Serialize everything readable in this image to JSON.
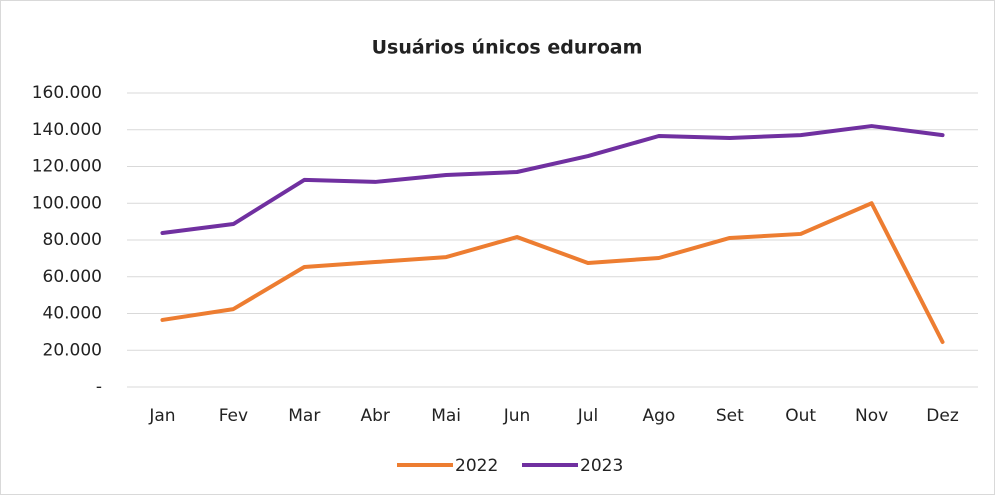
{
  "chart_data": {
    "type": "line",
    "title": "Usuários únicos eduroam",
    "categories": [
      "Jan",
      "Fev",
      "Mar",
      "Abr",
      "Mai",
      "Jun",
      "Jul",
      "Ago",
      "Set",
      "Out",
      "Nov",
      "Dez"
    ],
    "series": [
      {
        "name": "2022",
        "color": "#ed7d31",
        "values": [
          36500,
          42400,
          65300,
          68000,
          70700,
          81600,
          67500,
          70200,
          81100,
          83300,
          100000,
          24500
        ]
      },
      {
        "name": "2023",
        "color": "#7030a0",
        "values": [
          83800,
          88700,
          112700,
          111600,
          115400,
          117000,
          125700,
          136600,
          135500,
          137100,
          142000,
          137100
        ]
      }
    ],
    "ylim": [
      0,
      160000
    ],
    "yticks": [
      {
        "value": 0,
        "label": "-"
      },
      {
        "value": 20000,
        "label": "20.000"
      },
      {
        "value": 40000,
        "label": "40.000"
      },
      {
        "value": 60000,
        "label": "60.000"
      },
      {
        "value": 80000,
        "label": "80.000"
      },
      {
        "value": 100000,
        "label": "100.000"
      },
      {
        "value": 120000,
        "label": "120.000"
      },
      {
        "value": 140000,
        "label": "140.000"
      },
      {
        "value": 160000,
        "label": "160.000"
      }
    ],
    "grid": true,
    "legend": "bottom"
  }
}
